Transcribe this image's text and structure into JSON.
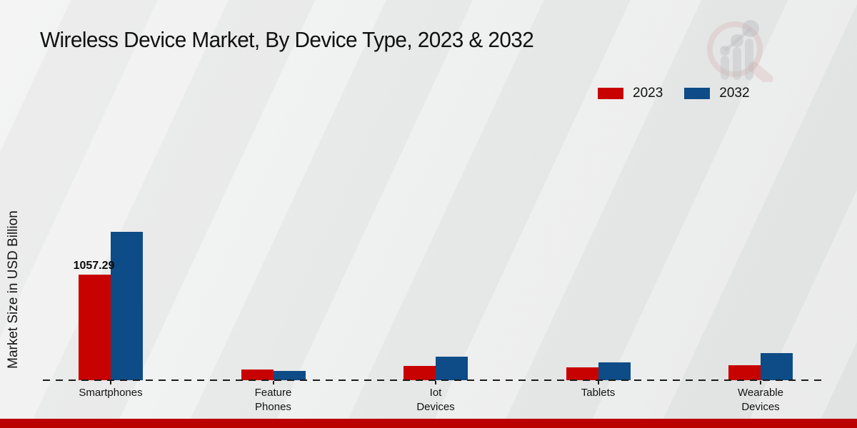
{
  "title": "Wireless Device Market, By Device Type, 2023 & 2032",
  "y_axis_label": "Market Size in USD Billion",
  "legend": {
    "position": "top-right",
    "items": [
      {
        "label": "2023",
        "color": "#c80101"
      },
      {
        "label": "2032",
        "color": "#0d4c86"
      }
    ]
  },
  "watermark_icon": "magnifier-bar-chart-logo",
  "footer_band_color": "#bb0000",
  "chart_data": {
    "type": "bar",
    "title": "Wireless Device Market, By Device Type, 2023 & 2032",
    "xlabel": "",
    "ylabel": "Market Size in USD Billion",
    "categories": [
      "Smartphones",
      "Feature Phones",
      "Iot Devices",
      "Tablets",
      "Wearable Devices"
    ],
    "series": [
      {
        "name": "2023",
        "color": "#c80101",
        "values": [
          1057.29,
          105,
          143,
          129,
          150
        ]
      },
      {
        "name": "2032",
        "color": "#0d4c86",
        "values": [
          1486,
          93,
          236,
          179,
          271
        ]
      }
    ],
    "bar_labels": [
      {
        "category": "Smartphones",
        "series": "2023",
        "text": "1057.29"
      }
    ],
    "ylim": [
      0,
      1600
    ],
    "grid": false,
    "y_axis_ticks_visible": false,
    "baseline_style": "black dashed line at zero",
    "legend_position": "top-right"
  }
}
